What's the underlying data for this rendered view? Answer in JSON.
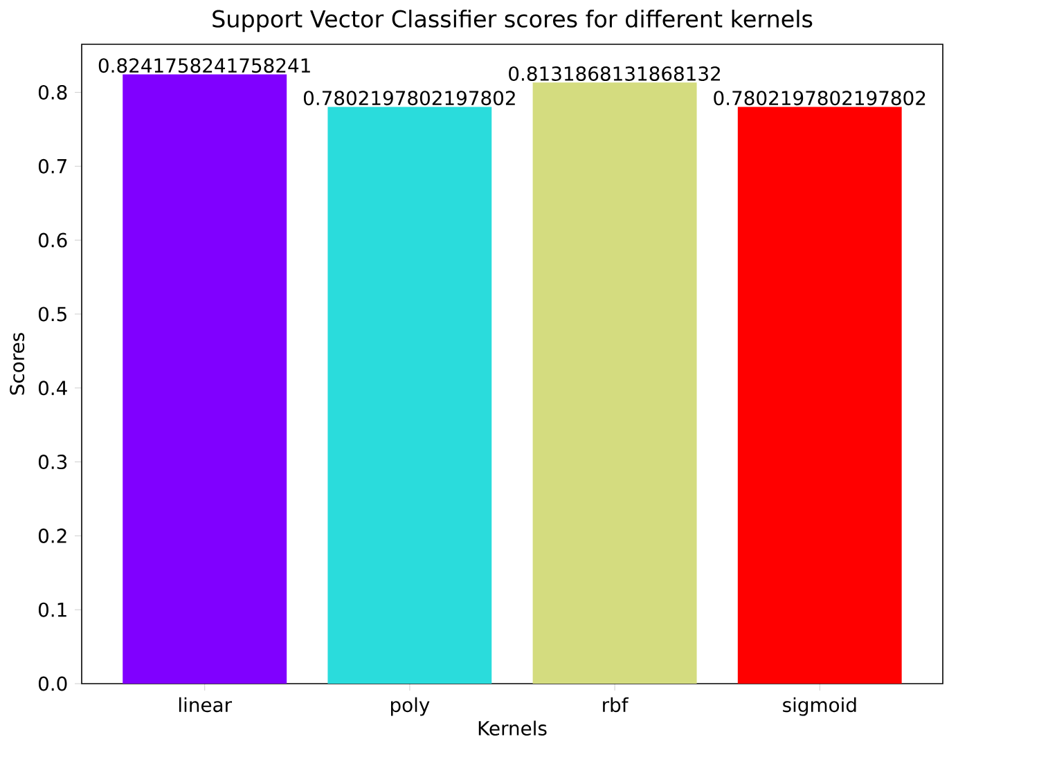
{
  "chart_data": {
    "type": "bar",
    "title": "Support Vector Classifier scores for different kernels",
    "xlabel": "Kernels",
    "ylabel": "Scores",
    "categories": [
      "linear",
      "poly",
      "rbf",
      "sigmoid"
    ],
    "values": [
      0.8241758241758241,
      0.7802197802197802,
      0.8131868131868132,
      0.7802197802197802
    ],
    "colors": [
      "#8000ff",
      "#2adcdc",
      "#d4dc7f",
      "#ff0000"
    ],
    "ylim": [
      0,
      0.865
    ],
    "yticks": [
      {
        "value": 0,
        "label": "0.0"
      },
      0.1,
      0.2,
      0.3,
      0.4,
      0.5,
      0.6,
      0.7,
      0.8
    ],
    "data_labels": true,
    "grid": false
  }
}
